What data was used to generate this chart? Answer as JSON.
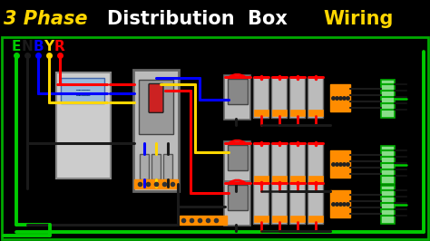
{
  "title_parts": [
    {
      "text": "3 Phase",
      "color": "#FFD700"
    },
    {
      "text": " Distribution  Box ",
      "color": "#FFFFFF"
    },
    {
      "text": "Wiring",
      "color": "#FFD700"
    }
  ],
  "bg": "#000000",
  "diagram_bg": "#FFFFFF",
  "wc": {
    "E": "#00CC00",
    "N": "#1A1A1A",
    "B": "#0000FF",
    "Y": "#FFD700",
    "R": "#FF0000"
  },
  "orange": "#FF8C00",
  "green_t": "#00AA00",
  "lw": 2.2,
  "lw_thick": 2.8
}
